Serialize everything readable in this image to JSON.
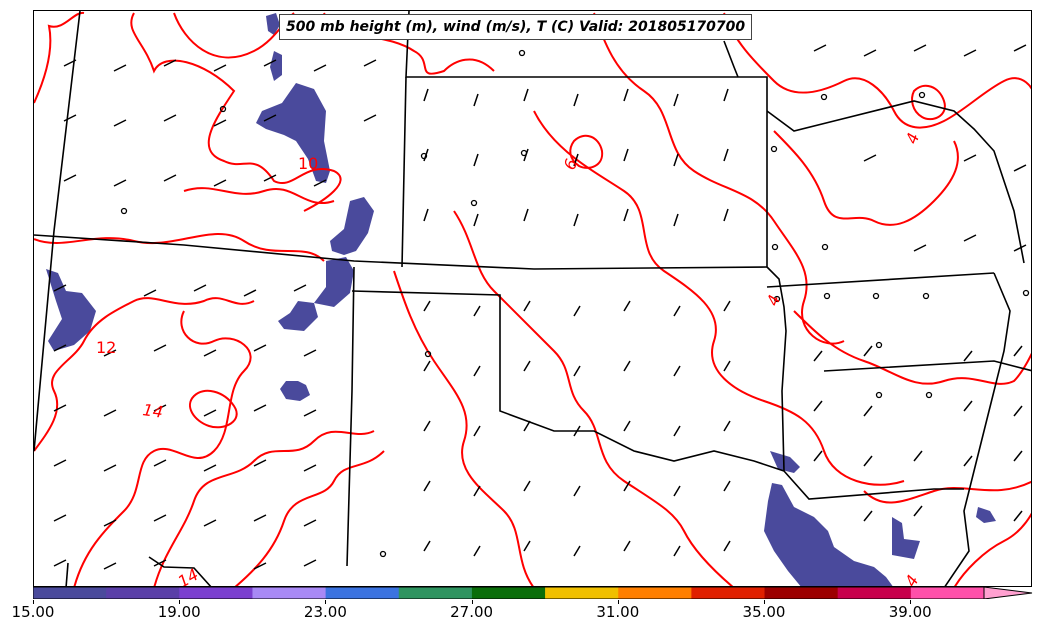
{
  "title": "500 mb height (m), wind (m/s), T (C) Valid: 201805170700",
  "contour_labels": [
    "10",
    "12",
    "14",
    "6",
    "4",
    "4",
    "14",
    "4"
  ],
  "colorbar": {
    "tick_labels": [
      "15.00",
      "19.00",
      "23.00",
      "27.00",
      "31.00",
      "35.00",
      "39.00"
    ],
    "colors": [
      "#4a4a9c",
      "#5a3fa8",
      "#7b3fd0",
      "#a889f5",
      "#3b73e0",
      "#2e9460",
      "#0a6e0a",
      "#f0c000",
      "#ff7f00",
      "#e02000",
      "#9c0000",
      "#c8004c",
      "#ff50aa",
      "#ffa0d0"
    ]
  },
  "colors": {
    "contour": "#ff0000",
    "boundary": "#000000",
    "precip_shade": "#4a4a9c"
  }
}
